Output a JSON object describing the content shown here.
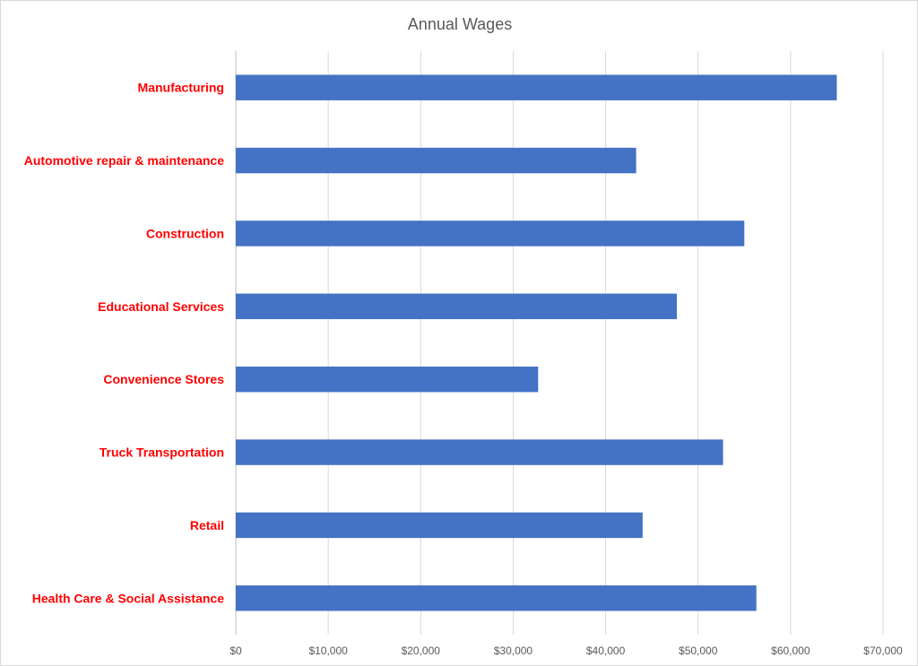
{
  "chart_data": {
    "type": "bar",
    "orientation": "horizontal",
    "title": "Annual Wages",
    "xlabel": "",
    "ylabel": "",
    "categories": [
      "Manufacturing",
      "Automotive repair & maintenance",
      "Construction",
      "Educational Services",
      "Convenience Stores",
      "Truck Transportation",
      "Retail",
      "Health Care & Social Assistance"
    ],
    "values": [
      65000,
      43300,
      55000,
      47700,
      32700,
      52700,
      44000,
      56300
    ],
    "xlim": [
      0,
      70000
    ],
    "ticks": [
      "$0",
      "$10,000",
      "$20,000",
      "$30,000",
      "$40,000",
      "$50,000",
      "$60,000",
      "$70,000"
    ],
    "grid": true,
    "legend": "none",
    "colors": {
      "bar": "#4472c4",
      "category_label": "#ff0000",
      "title": "#595959",
      "grid": "#d9d9d9"
    }
  }
}
